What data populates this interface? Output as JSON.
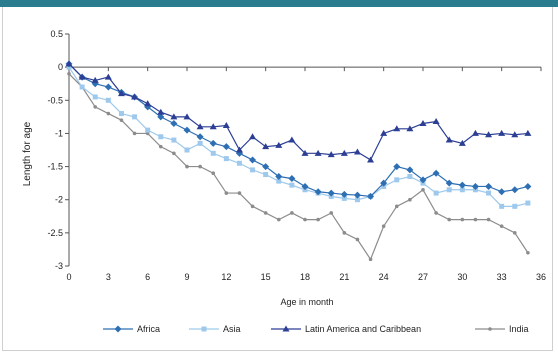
{
  "chart_data": {
    "type": "line",
    "title": "",
    "xlabel": "Age in month",
    "ylabel": "Length for age",
    "xlim": [
      0,
      36
    ],
    "ylim": [
      -3,
      0.5
    ],
    "xticks": [
      0,
      3,
      6,
      9,
      12,
      15,
      18,
      21,
      24,
      27,
      30,
      33,
      36
    ],
    "yticks": [
      0.5,
      0,
      -0.5,
      -1,
      -1.5,
      -2,
      -2.5,
      -3
    ],
    "ytick_labels": [
      "0.5",
      "0",
      "-0.5",
      "-1",
      "-1.5",
      "-2",
      "-2.5",
      "-3"
    ],
    "grid": false,
    "legend_position": "bottom",
    "x": [
      0,
      1,
      2,
      3,
      4,
      5,
      6,
      7,
      8,
      9,
      10,
      11,
      12,
      13,
      14,
      15,
      16,
      17,
      18,
      19,
      20,
      21,
      22,
      23,
      24,
      25,
      26,
      27,
      28,
      29,
      30,
      31,
      32,
      33,
      34,
      35
    ],
    "series": [
      {
        "name": "Africa",
        "color": "#2e6fb3",
        "marker": "diamond",
        "values": [
          0.05,
          -0.15,
          -0.25,
          -0.3,
          -0.38,
          -0.45,
          -0.6,
          -0.75,
          -0.85,
          -0.95,
          -1.05,
          -1.15,
          -1.2,
          -1.3,
          -1.4,
          -1.5,
          -1.65,
          -1.68,
          -1.8,
          -1.88,
          -1.9,
          -1.92,
          -1.93,
          -1.95,
          -1.75,
          -1.5,
          -1.55,
          -1.7,
          -1.6,
          -1.75,
          -1.78,
          -1.8,
          -1.8,
          -1.88,
          -1.85,
          -1.8
        ]
      },
      {
        "name": "Asia",
        "color": "#9ec9ec",
        "marker": "square",
        "values": [
          0.0,
          -0.3,
          -0.45,
          -0.5,
          -0.7,
          -0.75,
          -0.95,
          -1.05,
          -1.1,
          -1.25,
          -1.15,
          -1.3,
          -1.38,
          -1.45,
          -1.55,
          -1.62,
          -1.72,
          -1.78,
          -1.85,
          -1.9,
          -1.95,
          -1.98,
          -2.0,
          -1.95,
          -1.8,
          -1.7,
          -1.65,
          -1.75,
          -1.9,
          -1.85,
          -1.85,
          -1.85,
          -1.9,
          -2.1,
          -2.1,
          -2.05
        ]
      },
      {
        "name": "Latin America and Caribbean",
        "color": "#2c3f95",
        "marker": "triangle",
        "values": [
          0.05,
          -0.15,
          -0.2,
          -0.15,
          -0.4,
          -0.45,
          -0.55,
          -0.68,
          -0.75,
          -0.75,
          -0.9,
          -0.9,
          -0.88,
          -1.25,
          -1.05,
          -1.2,
          -1.18,
          -1.1,
          -1.3,
          -1.3,
          -1.32,
          -1.3,
          -1.28,
          -1.4,
          -1.0,
          -0.93,
          -0.93,
          -0.85,
          -0.82,
          -1.1,
          -1.15,
          -1.0,
          -1.02,
          -1.0,
          -1.02,
          -1.0
        ]
      },
      {
        "name": "India",
        "color": "#8c8c8c",
        "marker": "circle",
        "values": [
          -0.1,
          -0.3,
          -0.6,
          -0.7,
          -0.8,
          -1.0,
          -1.0,
          -1.2,
          -1.3,
          -1.5,
          -1.5,
          -1.6,
          -1.9,
          -1.9,
          -2.1,
          -2.2,
          -2.3,
          -2.2,
          -2.3,
          -2.3,
          -2.2,
          -2.5,
          -2.6,
          -2.9,
          -2.4,
          -2.1,
          -2.0,
          -1.85,
          -2.2,
          -2.3,
          -2.3,
          -2.3,
          -2.3,
          -2.4,
          -2.5,
          -2.8
        ]
      }
    ]
  }
}
